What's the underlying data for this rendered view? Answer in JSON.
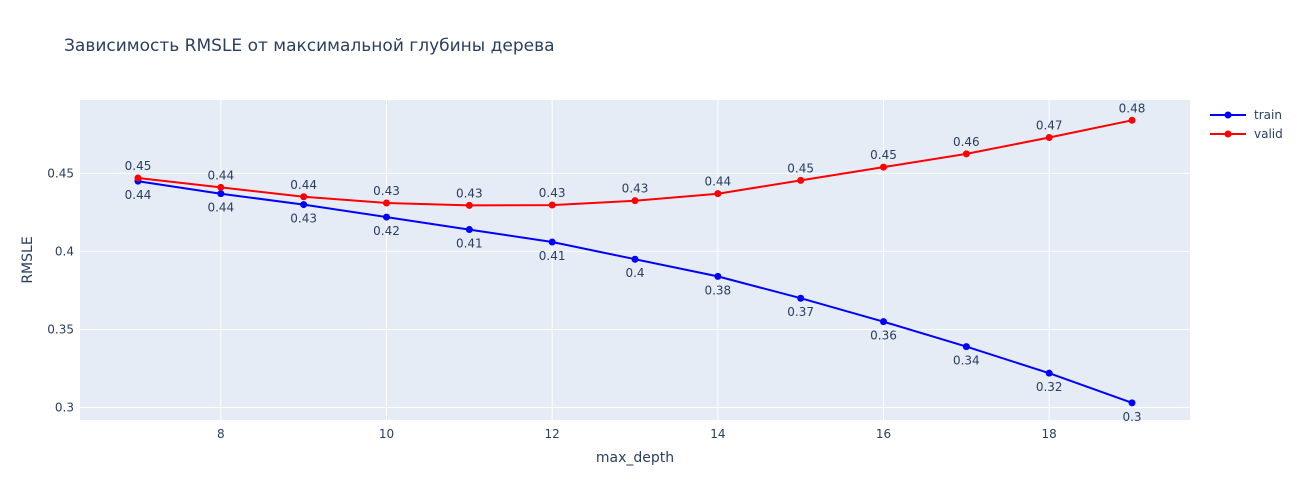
{
  "chart_data": {
    "type": "line",
    "title": "Зависимость RMSLE от максимальной глубины дерева",
    "xlabel": "max_depth",
    "ylabel": "RMSLE",
    "x": [
      7,
      8,
      9,
      10,
      11,
      12,
      13,
      14,
      15,
      16,
      17,
      18,
      19
    ],
    "xlim": [
      6.3,
      19.7
    ],
    "ylim": [
      0.292,
      0.497
    ],
    "xticks": [
      8,
      10,
      12,
      14,
      16,
      18
    ],
    "yticks": [
      0.3,
      0.35,
      0.4,
      0.45
    ],
    "ytick_labels": [
      "0.3",
      "0.35",
      "0.4",
      "0.45"
    ],
    "grid": true,
    "legend_position": "top-right",
    "series": [
      {
        "name": "train",
        "color": "#0000ff",
        "values": [
          0.445,
          0.437,
          0.43,
          0.422,
          0.414,
          0.406,
          0.395,
          0.384,
          0.37,
          0.355,
          0.339,
          0.322,
          0.303
        ],
        "labels": [
          "0.44",
          "0.44",
          "0.43",
          "0.42",
          "0.41",
          "0.41",
          "0.4",
          "0.38",
          "0.37",
          "0.36",
          "0.34",
          "0.32",
          "0.3"
        ],
        "label_position": "below"
      },
      {
        "name": "valid",
        "color": "#ff0000",
        "values": [
          0.447,
          0.441,
          0.435,
          0.431,
          0.4295,
          0.4297,
          0.4325,
          0.437,
          0.4455,
          0.454,
          0.4625,
          0.473,
          0.484
        ],
        "labels": [
          "0.45",
          "0.44",
          "0.44",
          "0.43",
          "0.43",
          "0.43",
          "0.43",
          "0.44",
          "0.45",
          "0.45",
          "0.46",
          "0.47",
          "0.48"
        ],
        "label_position": "above"
      }
    ],
    "colors": {
      "plot_bg": "#e5ecf6",
      "grid": "#ffffff",
      "text": "#2a3f5f"
    }
  }
}
